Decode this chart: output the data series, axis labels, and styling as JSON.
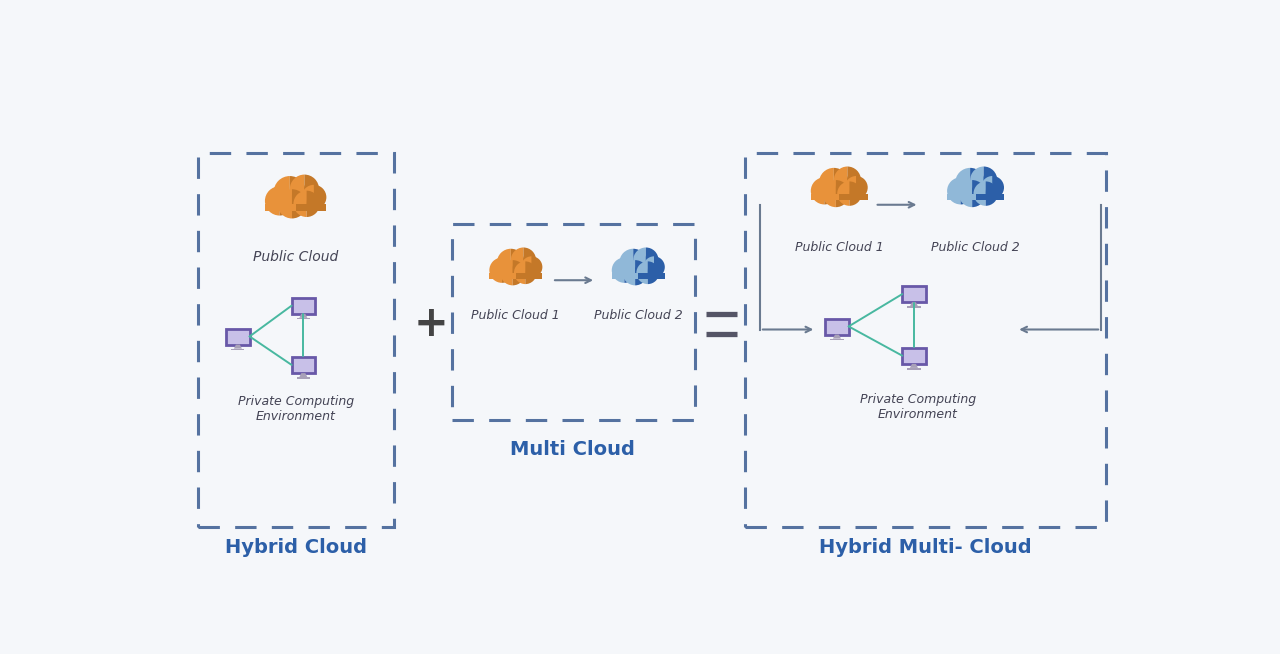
{
  "bg_color": "#f5f7fa",
  "dashed_box_color": "#5572a0",
  "orange_cloud_left": "#E8923A",
  "orange_cloud_right": "#C47828",
  "blue_cloud_left": "#90b8d8",
  "blue_cloud_right": "#2C5FA8",
  "monitor_fill": "#c8c0e8",
  "monitor_border": "#6858a8",
  "monitor_stand_fill": "#a8a0b8",
  "arrow_color": "#6a7a90",
  "plus_color": "#444444",
  "equals_color": "#555566",
  "title_color": "#2C5FA8",
  "label_color": "#444455",
  "connector_color": "#48b8a0",
  "hybrid_cloud_title": "Hybrid Cloud",
  "multi_cloud_title": "Multi Cloud",
  "hybrid_multi_cloud_title": "Hybrid Multi- Cloud",
  "public_cloud_label": "Public Cloud",
  "private_env_label": "Private Computing\nEnvironment",
  "public_cloud1_label": "Public Cloud 1",
  "public_cloud2_label": "Public Cloud 2"
}
